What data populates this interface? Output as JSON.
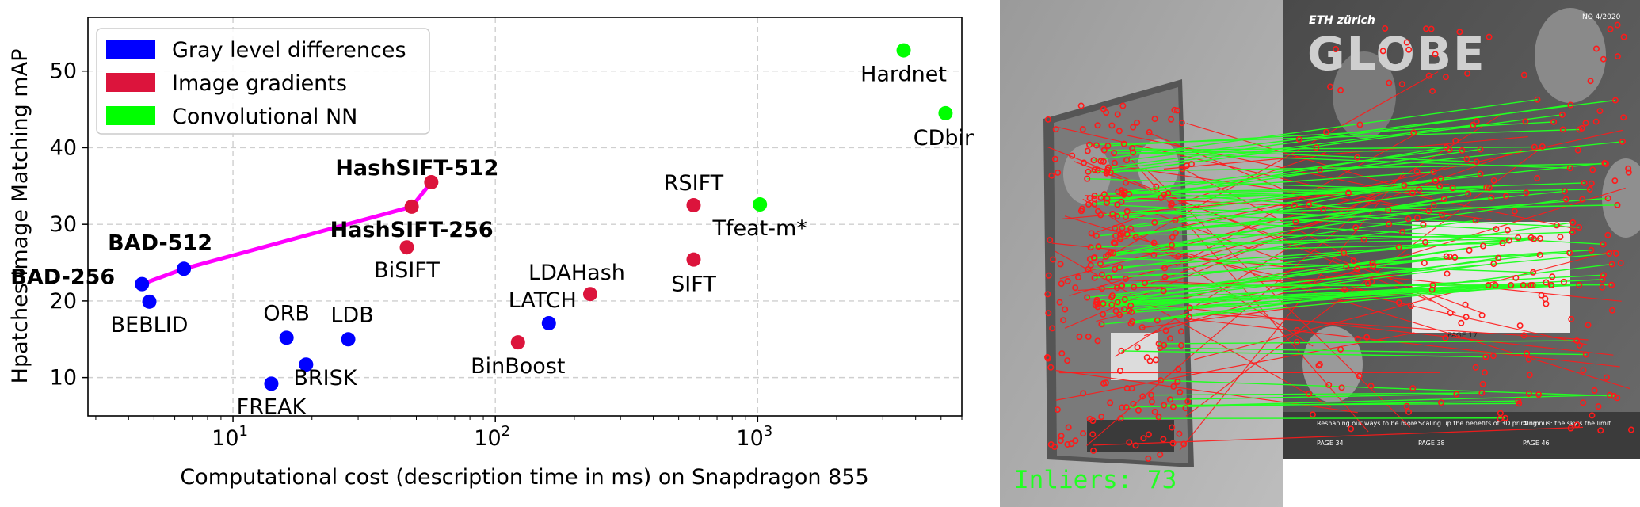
{
  "chart_data": {
    "type": "scatter",
    "xscale": "log",
    "xlabel": "Computational cost (description time in ms) on Snapdragon 855",
    "ylabel": "Hpatches Image Matching mAP",
    "xlim": [
      2.8,
      6000
    ],
    "ylim": [
      5,
      57
    ],
    "xticks": [
      {
        "value": 10,
        "base": "10",
        "exp": "1"
      },
      {
        "value": 100,
        "base": "10",
        "exp": "2"
      },
      {
        "value": 1000,
        "base": "10",
        "exp": "3"
      }
    ],
    "yticks": [
      10,
      20,
      30,
      40,
      50
    ],
    "grid": true,
    "legend_position": "upper-left",
    "legend": [
      {
        "label": "Gray level differences",
        "color": "#0000ff"
      },
      {
        "label": "Image gradients",
        "color": "#dc143c"
      },
      {
        "label": "Convolutional NN",
        "color": "#00ff00"
      }
    ],
    "points": [
      {
        "name": "BAD-256",
        "x": 4.5,
        "y": 22.2,
        "group": 0,
        "bold": true
      },
      {
        "name": "BAD-512",
        "x": 6.5,
        "y": 24.2,
        "group": 0,
        "bold": true
      },
      {
        "name": "BEBLID",
        "x": 4.8,
        "y": 19.9,
        "group": 0,
        "bold": false
      },
      {
        "name": "ORB",
        "x": 16,
        "y": 15.2,
        "group": 0,
        "bold": false
      },
      {
        "name": "LDB",
        "x": 27.5,
        "y": 15.0,
        "group": 0,
        "bold": false
      },
      {
        "name": "BRISK",
        "x": 19,
        "y": 11.7,
        "group": 0,
        "bold": false
      },
      {
        "name": "FREAK",
        "x": 14,
        "y": 9.2,
        "group": 0,
        "bold": false
      },
      {
        "name": "LATCH",
        "x": 160,
        "y": 17.1,
        "group": 0,
        "bold": false
      },
      {
        "name": "HashSIFT-512",
        "x": 57,
        "y": 35.5,
        "group": 1,
        "bold": true
      },
      {
        "name": "HashSIFT-256",
        "x": 48,
        "y": 32.3,
        "group": 1,
        "bold": true
      },
      {
        "name": "BiSIFT",
        "x": 46,
        "y": 27.0,
        "group": 1,
        "bold": false
      },
      {
        "name": "RSIFT",
        "x": 570,
        "y": 32.5,
        "group": 1,
        "bold": false
      },
      {
        "name": "SIFT",
        "x": 570,
        "y": 25.4,
        "group": 1,
        "bold": false
      },
      {
        "name": "LDAHash",
        "x": 230,
        "y": 20.9,
        "group": 1,
        "bold": false
      },
      {
        "name": "BinBoost",
        "x": 122,
        "y": 14.6,
        "group": 1,
        "bold": false
      },
      {
        "name": "Tfeat-m*",
        "x": 1020,
        "y": 32.6,
        "group": 2,
        "bold": false
      },
      {
        "name": "Hardnet",
        "x": 3600,
        "y": 52.7,
        "group": 2,
        "bold": false
      },
      {
        "name": "CDbin",
        "x": 5200,
        "y": 44.5,
        "group": 2,
        "bold": false
      }
    ],
    "ours_line": {
      "color": "#ff00ff",
      "points": [
        [
          4.5,
          22.2
        ],
        [
          6.5,
          24.2
        ],
        [
          48,
          32.3
        ],
        [
          57,
          35.5
        ]
      ]
    }
  },
  "matching_image": {
    "inliers_label": "Inliers: 73",
    "magazine": {
      "brand": "ETH zürich",
      "title": "GLOBE",
      "issue": "NO 4/2020",
      "captions": [
        {
          "text": "Reshaping our ways to be more",
          "page": "PAGE 34"
        },
        {
          "text": "Scaling up the benefits of 3D printing",
          "page": "PAGE 38"
        },
        {
          "text": "Alumnus: the sky's the limit",
          "page": "PAGE 46"
        }
      ],
      "page_17": "PAGE 17"
    },
    "colors": {
      "inlier": "#22ff22",
      "outlier": "#ff1a1a"
    }
  }
}
